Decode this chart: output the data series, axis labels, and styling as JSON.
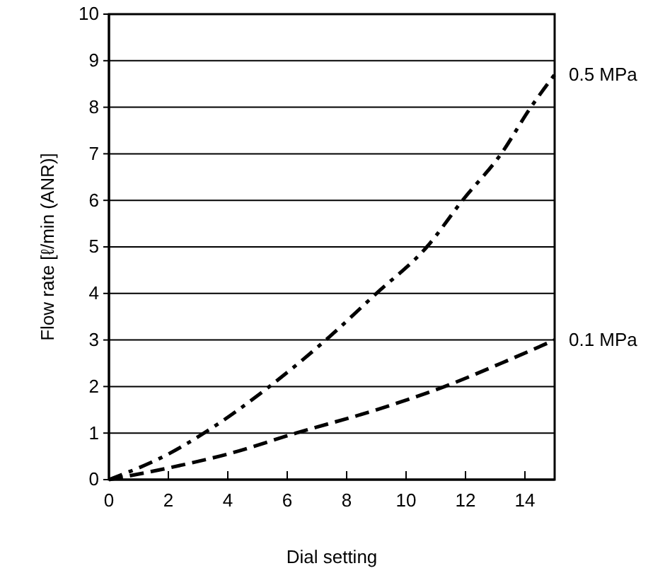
{
  "chart_data": {
    "type": "line",
    "xlabel": "Dial setting",
    "ylabel": "Flow rate [ℓ/min (ANR)]",
    "xlim": [
      0,
      15
    ],
    "xticks": [
      0,
      2,
      4,
      6,
      8,
      10,
      12,
      14
    ],
    "ylim": [
      0,
      10
    ],
    "yticks": [
      0,
      1,
      2,
      3,
      4,
      5,
      6,
      7,
      8,
      9,
      10
    ],
    "grid": "y",
    "legend": false,
    "marker": "none",
    "series": [
      {
        "name": "0.5 MPa",
        "color": "#000000",
        "line_style": "dashdot",
        "x": [
          0,
          2,
          3.2,
          5.4,
          7.3,
          9,
          10.7,
          11.9,
          13.2,
          14.2,
          15
        ],
        "values": [
          0,
          0.55,
          1,
          2,
          3,
          4,
          5,
          6,
          7,
          8,
          8.7
        ]
      },
      {
        "name": "0.1 MPa",
        "color": "#000000",
        "line_style": "dashed",
        "x": [
          0,
          2,
          4,
          6.3,
          9,
          11.3,
          13.2,
          15
        ],
        "values": [
          0,
          0.25,
          0.55,
          1,
          1.5,
          2,
          2.5,
          3
        ]
      }
    ]
  }
}
